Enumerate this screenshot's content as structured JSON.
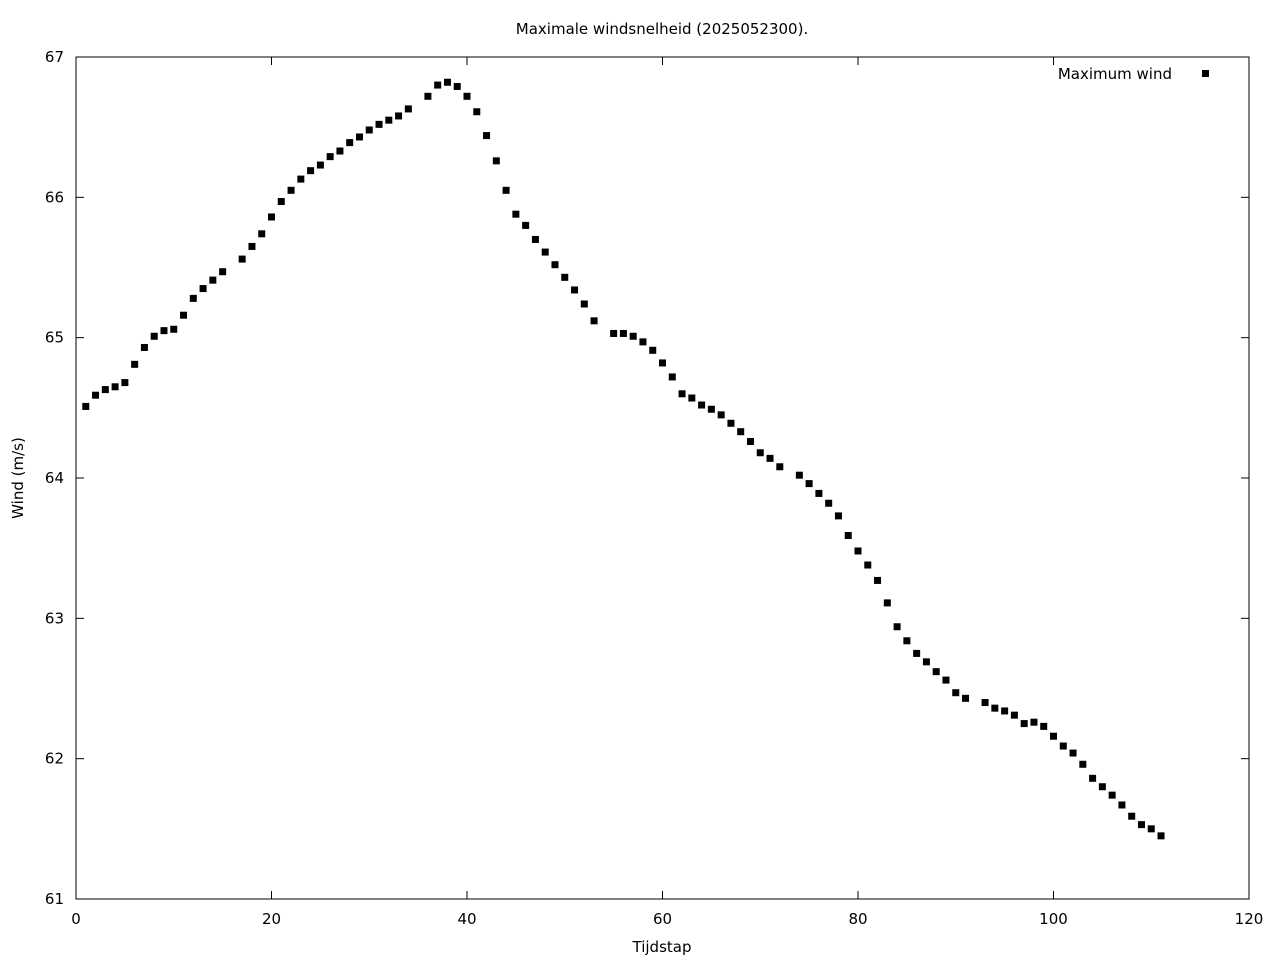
{
  "chart_data": {
    "type": "scatter",
    "title": "Maximale windsnelheid (2025052300).",
    "xlabel": "Tijdstap",
    "ylabel": "Wind (m/s)",
    "xlim": [
      0,
      120
    ],
    "ylim": [
      61,
      67
    ],
    "xticks": [
      "0",
      "20",
      "40",
      "60",
      "80",
      "100",
      "120"
    ],
    "yticks": [
      "61",
      "62",
      "63",
      "64",
      "65",
      "66",
      "67"
    ],
    "grid": false,
    "legend_position": "top-right",
    "series": [
      {
        "name": "Maximum wind",
        "color": "#000000",
        "marker": "square",
        "x": [
          1,
          2,
          3,
          4,
          5,
          6,
          7,
          8,
          9,
          10,
          11,
          12,
          13,
          14,
          15,
          17,
          18,
          19,
          20,
          21,
          22,
          23,
          24,
          25,
          26,
          27,
          28,
          29,
          30,
          31,
          32,
          33,
          34,
          36,
          37,
          38,
          39,
          40,
          41,
          42,
          43,
          44,
          45,
          46,
          47,
          48,
          49,
          50,
          51,
          52,
          53,
          55,
          56,
          57,
          58,
          59,
          60,
          61,
          62,
          63,
          64,
          65,
          66,
          67,
          68,
          69,
          70,
          71,
          72,
          74,
          75,
          76,
          77,
          78,
          79,
          80,
          81,
          82,
          83,
          84,
          85,
          86,
          87,
          88,
          89,
          90,
          91,
          93,
          94,
          95,
          96,
          97,
          98,
          99,
          100,
          101,
          102,
          103,
          104,
          105,
          106,
          107,
          108,
          109,
          110,
          111
        ],
        "y": [
          64.51,
          64.59,
          64.63,
          64.65,
          64.68,
          64.81,
          64.93,
          65.01,
          65.05,
          65.06,
          65.16,
          65.28,
          65.35,
          65.41,
          65.47,
          65.56,
          65.65,
          65.74,
          65.86,
          65.97,
          66.05,
          66.13,
          66.19,
          66.23,
          66.29,
          66.33,
          66.39,
          66.43,
          66.48,
          66.52,
          66.55,
          66.58,
          66.63,
          66.72,
          66.8,
          66.82,
          66.79,
          66.72,
          66.61,
          66.44,
          66.26,
          66.05,
          65.88,
          65.8,
          65.7,
          65.61,
          65.52,
          65.43,
          65.34,
          65.24,
          65.12,
          65.03,
          65.03,
          65.01,
          64.97,
          64.91,
          64.82,
          64.72,
          64.6,
          64.57,
          64.52,
          64.49,
          64.45,
          64.39,
          64.33,
          64.26,
          64.18,
          64.14,
          64.08,
          64.02,
          63.96,
          63.89,
          63.82,
          63.73,
          63.59,
          63.48,
          63.38,
          63.27,
          63.11,
          62.94,
          62.84,
          62.75,
          62.69,
          62.62,
          62.56,
          62.47,
          62.43,
          62.4,
          62.36,
          62.34,
          62.31,
          62.25,
          62.26,
          62.23,
          62.16,
          62.09,
          62.04,
          61.96,
          61.86,
          61.8,
          61.74,
          61.67,
          61.59,
          61.53,
          61.5,
          61.45
        ]
      }
    ]
  }
}
